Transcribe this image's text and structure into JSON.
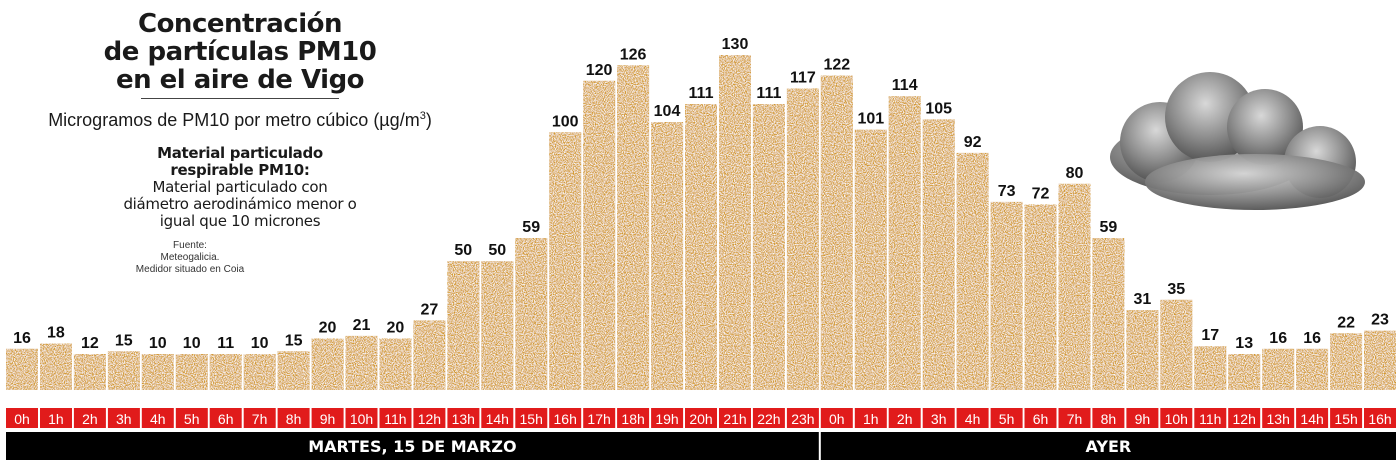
{
  "title": "Concentración\nde partículas PM10\nen el aire de Vigo",
  "subtitle_main": "Microgramos de PM10 por metro cúbico (µg/m",
  "subtitle_sup": "3",
  "subtitle_end": ")",
  "note_bold": "Material particulado\nrespirable PM10:",
  "note_body": "Material particulado con\ndiámetro aerodinámico menor o\nigual que 10 micrones",
  "source": "Fuente:\nMeteogalicia.\nMedidor situado en Coia",
  "colors": {
    "bar": "#d39a2c",
    "bar_dark": "#b07416",
    "label_red": "#e11b1b",
    "band": "#000000"
  },
  "icons": [
    "cloud-icon"
  ],
  "chart_data": {
    "type": "bar",
    "title": "Concentración de partículas PM10 en el aire de Vigo",
    "ylabel": "Microgramos de PM10 por metro cúbico (µg/m3)",
    "categories": [
      "0h",
      "1h",
      "2h",
      "3h",
      "4h",
      "5h",
      "6h",
      "7h",
      "8h",
      "9h",
      "10h",
      "11h",
      "12h",
      "13h",
      "14h",
      "15h",
      "16h",
      "17h",
      "18h",
      "19h",
      "20h",
      "21h",
      "22h",
      "23h",
      "0h",
      "1h",
      "2h",
      "3h",
      "4h",
      "5h",
      "6h",
      "7h",
      "8h",
      "9h",
      "10h",
      "11h",
      "12h",
      "13h",
      "14h",
      "15h",
      "16h"
    ],
    "values": [
      16,
      18,
      12,
      15,
      10,
      10,
      11,
      10,
      15,
      20,
      21,
      20,
      27,
      50,
      50,
      59,
      100,
      120,
      126,
      104,
      111,
      130,
      111,
      117,
      122,
      101,
      114,
      105,
      92,
      73,
      72,
      80,
      59,
      31,
      35,
      17,
      13,
      16,
      16,
      22,
      23
    ],
    "groups": [
      {
        "label": "MARTES, 15 DE MARZO",
        "count": 24
      },
      {
        "label": "AYER",
        "count": 17
      }
    ],
    "ylim": [
      0,
      130
    ],
    "grid": false,
    "legend": "none"
  }
}
